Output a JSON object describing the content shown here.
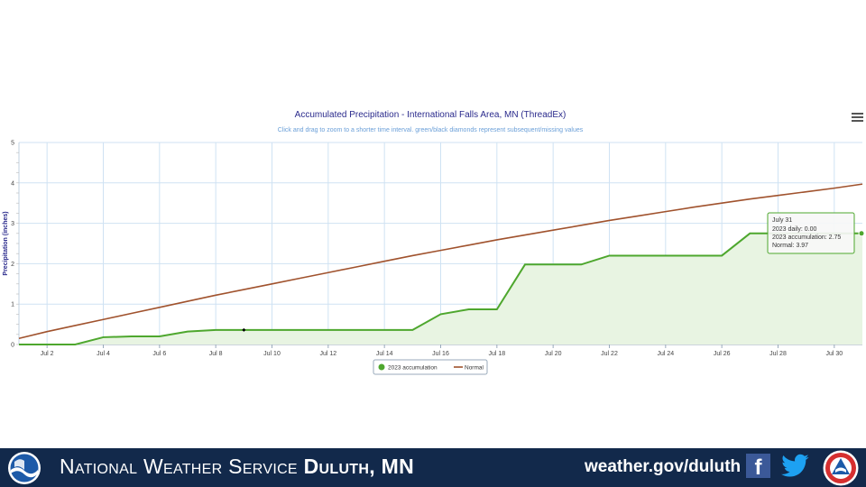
{
  "chart_data": {
    "type": "area",
    "title": "Accumulated Precipitation - International Falls Area, MN (ThreadEx)",
    "subtitle": "Click and drag to zoom to a shorter time interval. green/black diamonds represent subsequent/missing values",
    "ylabel": "Precipitation (inches)",
    "xlabel": "",
    "ylim": [
      0,
      5
    ],
    "xlim": [
      1,
      31
    ],
    "y_ticks": [
      0,
      1,
      2,
      3,
      4,
      5
    ],
    "x_ticks": [
      {
        "day": 2,
        "label": "Jul 2"
      },
      {
        "day": 4,
        "label": "Jul 4"
      },
      {
        "day": 6,
        "label": "Jul 6"
      },
      {
        "day": 8,
        "label": "Jul 8"
      },
      {
        "day": 10,
        "label": "Jul 10"
      },
      {
        "day": 12,
        "label": "Jul 12"
      },
      {
        "day": 14,
        "label": "Jul 14"
      },
      {
        "day": 16,
        "label": "Jul 16"
      },
      {
        "day": 18,
        "label": "Jul 18"
      },
      {
        "day": 20,
        "label": "Jul 20"
      },
      {
        "day": 22,
        "label": "Jul 22"
      },
      {
        "day": 24,
        "label": "Jul 24"
      },
      {
        "day": 26,
        "label": "Jul 26"
      },
      {
        "day": 28,
        "label": "Jul 28"
      },
      {
        "day": 30,
        "label": "Jul 30"
      }
    ],
    "grid": true,
    "legend_position": "bottom-center",
    "series": [
      {
        "name": "2023 accumulation",
        "color": "#4ea72e",
        "fill": "#e8f4e2",
        "x": [
          1,
          2,
          3,
          4,
          5,
          6,
          7,
          8,
          9,
          10,
          11,
          12,
          13,
          14,
          15,
          16,
          17,
          18,
          19,
          20,
          21,
          22,
          23,
          24,
          25,
          26,
          27,
          28,
          29,
          30,
          31
        ],
        "values": [
          0,
          0,
          0,
          0.18,
          0.2,
          0.2,
          0.32,
          0.36,
          0.36,
          0.36,
          0.36,
          0.36,
          0.36,
          0.36,
          0.36,
          0.75,
          0.87,
          0.87,
          1.98,
          1.98,
          1.98,
          2.2,
          2.2,
          2.2,
          2.2,
          2.2,
          2.75,
          2.75,
          2.75,
          2.75,
          2.75
        ]
      },
      {
        "name": "Normal",
        "color": "#a0522d",
        "x": [
          1,
          2,
          3,
          4,
          5,
          6,
          7,
          8,
          9,
          10,
          11,
          12,
          13,
          14,
          15,
          16,
          17,
          18,
          19,
          20,
          21,
          22,
          23,
          24,
          25,
          26,
          27,
          28,
          29,
          30,
          31
        ],
        "values": [
          0.15,
          0.32,
          0.47,
          0.62,
          0.77,
          0.92,
          1.07,
          1.22,
          1.36,
          1.5,
          1.64,
          1.78,
          1.92,
          2.06,
          2.2,
          2.33,
          2.46,
          2.59,
          2.71,
          2.83,
          2.95,
          3.07,
          3.18,
          3.29,
          3.4,
          3.5,
          3.6,
          3.69,
          3.78,
          3.87,
          3.97
        ]
      }
    ],
    "missing_marker": {
      "day": 9,
      "value": 0.36
    },
    "tooltip": {
      "title": "July 31",
      "lines": [
        "2023 daily: 0.00",
        "2023 accumulation: 2.75",
        "Normal: 3.97"
      ]
    }
  },
  "footer": {
    "title_regular": "National Weather Service",
    "title_bold": "Duluth, MN",
    "url": "weather.gov/duluth",
    "facebook_glyph": "f",
    "icons": [
      "noaa-logo",
      "facebook-icon",
      "twitter-icon",
      "nws-logo"
    ],
    "colors": {
      "background": "#12294b",
      "text": "#ffffff"
    }
  }
}
